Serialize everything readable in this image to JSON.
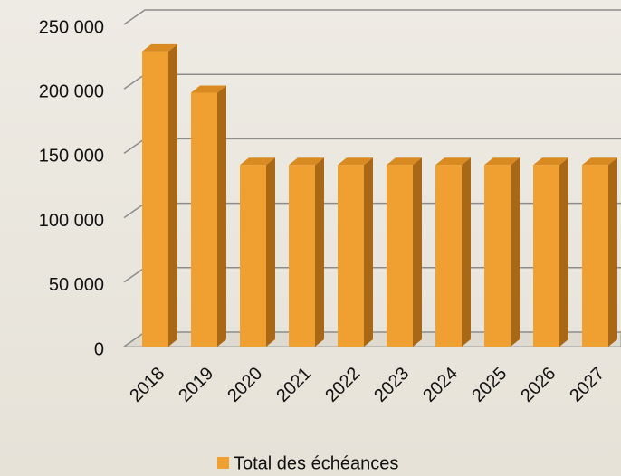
{
  "chart_data": {
    "type": "bar",
    "categories": [
      "2018",
      "2019",
      "2020",
      "2021",
      "2022",
      "2023",
      "2024",
      "2025",
      "2026",
      "2027"
    ],
    "series": [
      {
        "name": "Total des échéances",
        "color": "#f0a030",
        "values": [
          229000,
          197000,
          141000,
          141000,
          141000,
          141000,
          141000,
          141000,
          141000,
          141000
        ]
      }
    ],
    "ylim": [
      0,
      250000
    ],
    "yticks": [
      0,
      {
        "value": 50000,
        "label": "50 000"
      },
      {
        "value": 100000,
        "label": "100 000"
      },
      {
        "value": 150000,
        "label": "150 000"
      },
      {
        "value": 200000,
        "label": "200 000"
      },
      {
        "value": 250000,
        "label": "250 000"
      }
    ],
    "grid": true,
    "legend": "bottom"
  }
}
